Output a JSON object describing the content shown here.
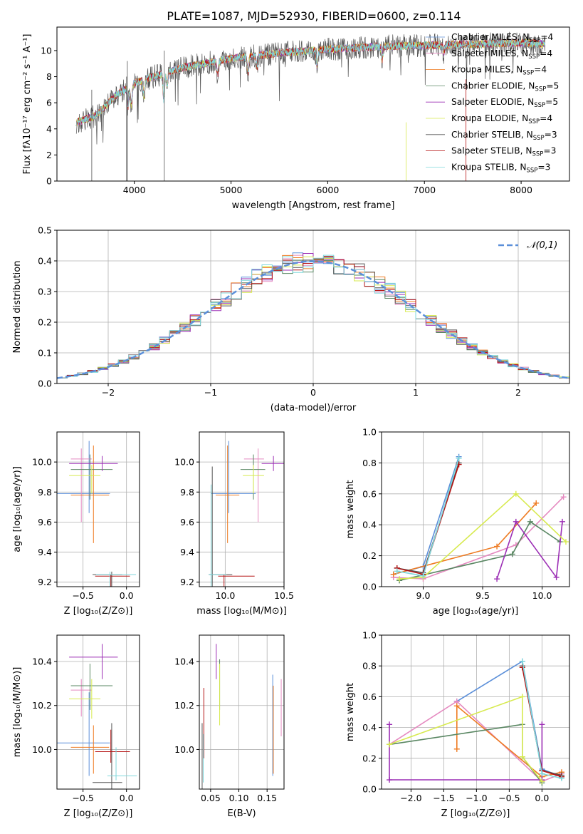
{
  "title": "PLATE=1087, MJD=52930, FIBERID=0600, z=0.114",
  "colors": {
    "Chabrier MILES": "#5b8fd9",
    "Salpeter MILES": "#e58ac0",
    "Kroupa MILES": "#ee7b22",
    "Chabrier ELODIE": "#5a8763",
    "Salpeter ELODIE": "#9c2fb5",
    "Kroupa ELODIE": "#d7ea4f",
    "Chabrier STELIB": "#555555",
    "Salpeter STELIB": "#b51414",
    "Kroupa STELIB": "#7fd8dc",
    "gauss": "#5b8fd9"
  },
  "legend_models": [
    {
      "name": "Chabrier MILES",
      "suffix": "4"
    },
    {
      "name": "Salpeter MILES",
      "suffix": "4"
    },
    {
      "name": "Kroupa MILES",
      "suffix": "4"
    },
    {
      "name": "Chabrier ELODIE",
      "suffix": "5"
    },
    {
      "name": "Salpeter ELODIE",
      "suffix": "5"
    },
    {
      "name": "Kroupa ELODIE",
      "suffix": "4"
    },
    {
      "name": "Chabrier STELIB",
      "suffix": "3"
    },
    {
      "name": "Salpeter STELIB",
      "suffix": "3"
    },
    {
      "name": "Kroupa STELIB",
      "suffix": "3"
    }
  ],
  "chart_data": [
    {
      "id": "spectrum",
      "type": "line",
      "xlabel": "wavelength [Angstrom, rest frame]",
      "ylabel": "Flux [fλ10⁻¹⁷ erg cm⁻² s⁻¹ A⁻¹]",
      "xlim": [
        3200,
        8500
      ],
      "ylim": [
        0,
        11.8
      ],
      "xticks": [
        4000,
        5000,
        6000,
        7000,
        8000
      ],
      "yticks": [
        0,
        2,
        4,
        6,
        8,
        10
      ],
      "continuum_x": [
        3400,
        3600,
        3800,
        4000,
        4200,
        4500,
        4800,
        5000,
        5500,
        6000,
        6500,
        7000,
        7500,
        8000,
        8250
      ],
      "continuum_y": [
        4.5,
        5.0,
        6.5,
        7.5,
        8.0,
        8.7,
        9.1,
        9.4,
        9.8,
        10.1,
        10.3,
        10.4,
        10.5,
        10.6,
        10.5
      ],
      "absorption_features": [
        [
          3934,
          1.5
        ],
        [
          3969,
          1.5
        ],
        [
          4101,
          1.2
        ],
        [
          4305,
          2.0
        ],
        [
          4340,
          1.0
        ],
        [
          4861,
          1.0
        ],
        [
          5175,
          1.2
        ],
        [
          5270,
          0.8
        ],
        [
          5890,
          1.2
        ],
        [
          6563,
          1.0
        ],
        [
          7200,
          0.6
        ]
      ]
    },
    {
      "id": "residual-histogram",
      "type": "bar",
      "xlabel": "(data-model)/error",
      "ylabel": "Normed distribution",
      "xlim": [
        -2.5,
        2.5
      ],
      "ylim": [
        0,
        0.5
      ],
      "xticks": [
        -2,
        -1,
        0,
        1,
        2
      ],
      "yticks": [
        0.0,
        0.1,
        0.2,
        0.3,
        0.4,
        0.5
      ],
      "bin_width": 0.1,
      "gauss_label": "𝒩(0,1)",
      "gauss_mean": 0,
      "gauss_sigma": 1
    },
    {
      "id": "age-vs-Z",
      "type": "scatter",
      "xlabel": "Z [log₁₀(Z/Z⊙)]",
      "ylabel": "age  [log₁₀(age/yr)]",
      "xlim": [
        -0.8,
        0.15
      ],
      "ylim": [
        9.17,
        10.2
      ],
      "xticks": [
        -0.5,
        0.0
      ],
      "yticks": [
        9.2,
        9.4,
        9.6,
        9.8,
        10.0
      ],
      "points": [
        {
          "model": "Chabrier MILES",
          "x": -0.43,
          "y": 9.79,
          "xe": [
            0.38,
            0.24
          ],
          "ye": [
            0.13,
            0.35
          ]
        },
        {
          "model": "Salpeter MILES",
          "x": -0.52,
          "y": 10.02,
          "xe": [
            0.12,
            0.12
          ],
          "ye": [
            0.42,
            0.07
          ]
        },
        {
          "model": "Kroupa MILES",
          "x": -0.38,
          "y": 9.78,
          "xe": [
            0.26,
            0.18
          ],
          "ye": [
            0.32,
            0.33
          ]
        },
        {
          "model": "Chabrier ELODIE",
          "x": -0.42,
          "y": 9.95,
          "xe": [
            0.22,
            0.26
          ],
          "ye": [
            0.2,
            0.1
          ]
        },
        {
          "model": "Salpeter ELODIE",
          "x": -0.28,
          "y": 9.99,
          "xe": [
            0.38,
            0.18
          ],
          "ye": [
            0.05,
            0.05
          ]
        },
        {
          "model": "Kroupa ELODIE",
          "x": -0.4,
          "y": 9.91,
          "xe": [
            0.26,
            0.1
          ],
          "ye": [
            0.12,
            0.07
          ]
        },
        {
          "model": "Chabrier STELIB",
          "x": -0.17,
          "y": 9.25,
          "xe": [
            0.22,
            0.12
          ],
          "ye": [
            0.34,
            0.02
          ]
        },
        {
          "model": "Salpeter STELIB",
          "x": -0.18,
          "y": 9.24,
          "xe": [
            0.18,
            0.22
          ],
          "ye": [
            0.36,
            0.01
          ]
        },
        {
          "model": "Kroupa STELIB",
          "x": -0.19,
          "y": 9.25,
          "xe": [
            0.16,
            0.3
          ],
          "ye": [
            0.36,
            0.02
          ]
        }
      ]
    },
    {
      "id": "age-vs-mass",
      "type": "scatter",
      "xlabel": "mass [log₁₀(M/M⊙)]",
      "ylabel": "",
      "xlim": [
        9.78,
        10.5
      ],
      "ylim": [
        9.17,
        10.2
      ],
      "xticks": [
        10.0,
        10.5
      ],
      "yticks": [
        9.2,
        9.4,
        9.6,
        9.8,
        10.0
      ],
      "points": [
        {
          "model": "Chabrier MILES",
          "x": 10.03,
          "y": 9.79,
          "xe": [
            0.15,
            0.23
          ],
          "ye": [
            0.13,
            0.35
          ]
        },
        {
          "model": "Salpeter MILES",
          "x": 10.28,
          "y": 10.02,
          "xe": [
            0.12,
            0.05
          ],
          "ye": [
            0.42,
            0.07
          ]
        },
        {
          "model": "Kroupa MILES",
          "x": 10.02,
          "y": 9.78,
          "xe": [
            0.1,
            0.1
          ],
          "ye": [
            0.32,
            0.33
          ]
        },
        {
          "model": "Chabrier ELODIE",
          "x": 10.24,
          "y": 9.95,
          "xe": [
            0.11,
            0.1
          ],
          "ye": [
            0.2,
            0.1
          ]
        },
        {
          "model": "Salpeter ELODIE",
          "x": 10.41,
          "y": 9.99,
          "xe": [
            0.1,
            0.09
          ],
          "ye": [
            0.05,
            0.05
          ]
        },
        {
          "model": "Kroupa ELODIE",
          "x": 10.24,
          "y": 9.91,
          "xe": [
            0.09,
            0.09
          ],
          "ye": [
            0.12,
            0.07
          ]
        },
        {
          "model": "Chabrier STELIB",
          "x": 9.89,
          "y": 9.25,
          "xe": [
            0.03,
            0.17
          ],
          "ye": [
            0.34,
            0.72
          ]
        },
        {
          "model": "Salpeter STELIB",
          "x": 9.99,
          "y": 9.24,
          "xe": [
            0.05,
            0.26
          ],
          "ye": [
            0.36,
            0.01
          ]
        },
        {
          "model": "Kroupa STELIB",
          "x": 9.88,
          "y": 9.25,
          "xe": [
            0.02,
            0.13
          ],
          "ye": [
            0.36,
            0.6
          ]
        }
      ]
    },
    {
      "id": "massweight-vs-age",
      "type": "line",
      "xlabel": "age  [log₁₀(age/yr)]",
      "ylabel": "mass weight",
      "xlim": [
        8.65,
        10.23
      ],
      "ylim": [
        0,
        1
      ],
      "xticks": [
        9.0,
        9.5,
        10.0
      ],
      "yticks": [
        0.0,
        0.2,
        0.4,
        0.6,
        0.8,
        1.0
      ],
      "series": [
        {
          "model": "Chabrier MILES",
          "x": [
            8.75,
            9.0,
            9.3
          ],
          "y": [
            0.08,
            0.13,
            0.84
          ]
        },
        {
          "model": "Salpeter MILES",
          "x": [
            8.75,
            9.0,
            9.78,
            10.18
          ],
          "y": [
            0.06,
            0.05,
            0.27,
            0.58
          ]
        },
        {
          "model": "Kroupa MILES",
          "x": [
            8.75,
            9.62,
            9.95
          ],
          "y": [
            0.08,
            0.26,
            0.54
          ]
        },
        {
          "model": "Chabrier ELODIE",
          "x": [
            8.8,
            9.75,
            9.9,
            10.15
          ],
          "y": [
            0.04,
            0.21,
            0.42,
            0.29
          ]
        },
        {
          "model": "Salpeter ELODIE",
          "x": [
            9.62,
            9.78,
            10.12,
            10.17
          ],
          "y": [
            0.05,
            0.42,
            0.06,
            0.42
          ]
        },
        {
          "model": "Kroupa ELODIE",
          "x": [
            8.8,
            9.0,
            9.78,
            10.2
          ],
          "y": [
            0.05,
            0.06,
            0.6,
            0.29
          ]
        },
        {
          "model": "Chabrier STELIB",
          "x": [
            8.78,
            9.0,
            9.3
          ],
          "y": [
            0.12,
            0.09,
            0.8
          ]
        },
        {
          "model": "Salpeter STELIB",
          "x": [
            8.78,
            9.0,
            9.3
          ],
          "y": [
            0.12,
            0.08,
            0.79
          ]
        },
        {
          "model": "Kroupa STELIB",
          "x": [
            8.78,
            9.0,
            9.3
          ],
          "y": [
            0.1,
            0.07,
            0.83
          ]
        }
      ]
    },
    {
      "id": "mass-vs-Z",
      "type": "scatter",
      "xlabel": "Z [log₁₀(Z/Z⊙)]",
      "ylabel": "mass [log₁₀(M/M⊙)]",
      "xlim": [
        -0.8,
        0.15
      ],
      "ylim": [
        9.82,
        10.52
      ],
      "xticks": [
        -0.5,
        0.0
      ],
      "yticks": [
        10.0,
        10.2,
        10.4
      ],
      "points": [
        {
          "model": "Chabrier MILES",
          "x": -0.43,
          "y": 10.03,
          "xe": [
            0.38,
            0.24
          ],
          "ye": [
            0.15,
            0.23
          ]
        },
        {
          "model": "Salpeter MILES",
          "x": -0.52,
          "y": 10.27,
          "xe": [
            0.12,
            0.12
          ],
          "ye": [
            0.12,
            0.05
          ]
        },
        {
          "model": "Kroupa MILES",
          "x": -0.38,
          "y": 10.01,
          "xe": [
            0.26,
            0.18
          ],
          "ye": [
            0.12,
            0.1
          ]
        },
        {
          "model": "Chabrier ELODIE",
          "x": -0.42,
          "y": 10.29,
          "xe": [
            0.22,
            0.26
          ],
          "ye": [
            0.11,
            0.1
          ]
        },
        {
          "model": "Salpeter ELODIE",
          "x": -0.28,
          "y": 10.42,
          "xe": [
            0.38,
            0.18
          ],
          "ye": [
            0.1,
            0.06
          ]
        },
        {
          "model": "Kroupa ELODIE",
          "x": -0.4,
          "y": 10.23,
          "xe": [
            0.26,
            0.1
          ],
          "ye": [
            0.09,
            0.09
          ]
        },
        {
          "model": "Chabrier STELIB",
          "x": -0.17,
          "y": 9.85,
          "xe": [
            0.22,
            0.12
          ],
          "ye": [
            0.03,
            0.27
          ]
        },
        {
          "model": "Salpeter STELIB",
          "x": -0.18,
          "y": 9.99,
          "xe": [
            0.18,
            0.22
          ],
          "ye": [
            0.05,
            0.1
          ]
        },
        {
          "model": "Kroupa STELIB",
          "x": -0.12,
          "y": 9.88,
          "xe": [
            0.1,
            0.24
          ],
          "ye": [
            0.02,
            0.13
          ]
        }
      ]
    },
    {
      "id": "mass-vs-EBV",
      "type": "scatter",
      "xlabel": "E(B-V)",
      "ylabel": "",
      "xlim": [
        0.03,
        0.18
      ],
      "ylim": [
        9.82,
        10.52
      ],
      "xticks": [
        0.05,
        0.1,
        0.15
      ],
      "yticks": [
        10.0,
        10.2,
        10.4
      ],
      "points": [
        {
          "model": "Chabrier MILES",
          "x": 0.16,
          "y": 10.03,
          "xe": [
            0,
            0
          ],
          "ye": [
            0.15,
            0.31
          ]
        },
        {
          "model": "Salpeter MILES",
          "x": 0.175,
          "y": 10.17,
          "xe": [
            0,
            0
          ],
          "ye": [
            0.11,
            0.15
          ]
        },
        {
          "model": "Kroupa MILES",
          "x": 0.161,
          "y": 10.01,
          "xe": [
            0,
            0
          ],
          "ye": [
            0.12,
            0.28
          ]
        },
        {
          "model": "Chabrier ELODIE",
          "x": 0.066,
          "y": 10.29,
          "xe": [
            0,
            0
          ],
          "ye": [
            0.11,
            0.12
          ]
        },
        {
          "model": "Salpeter ELODIE",
          "x": 0.06,
          "y": 10.42,
          "xe": [
            0,
            0
          ],
          "ye": [
            0.1,
            0.06
          ]
        },
        {
          "model": "Kroupa ELODIE",
          "x": 0.066,
          "y": 10.25,
          "xe": [
            0,
            0
          ],
          "ye": [
            0.14,
            0.14
          ]
        },
        {
          "model": "Chabrier STELIB",
          "x": 0.035,
          "y": 9.96,
          "xe": [
            0,
            0
          ],
          "ye": [
            0.14,
            0.16
          ]
        },
        {
          "model": "Salpeter STELIB",
          "x": 0.038,
          "y": 10.09,
          "xe": [
            0,
            0
          ],
          "ye": [
            0.13,
            0.19
          ]
        },
        {
          "model": "Kroupa STELIB",
          "x": 0.037,
          "y": 9.95,
          "xe": [
            0,
            0
          ],
          "ye": [
            0.1,
            0.12
          ]
        }
      ]
    },
    {
      "id": "massweight-vs-Z",
      "type": "line",
      "xlabel": "Z [log₁₀(Z/Z⊙)]",
      "ylabel": "mass weight",
      "xlim": [
        -2.45,
        0.42
      ],
      "ylim": [
        0,
        1
      ],
      "xticks": [
        -2.0,
        -1.5,
        -1.0,
        -0.5,
        0.0
      ],
      "yticks": [
        0.0,
        0.2,
        0.4,
        0.6,
        0.8,
        1.0
      ],
      "series": [
        {
          "model": "Chabrier MILES",
          "x": [
            -1.3,
            -0.3,
            0.0,
            0.3
          ],
          "y": [
            0.57,
            0.83,
            0.13,
            0.08
          ]
        },
        {
          "model": "Salpeter MILES",
          "x": [
            -2.33,
            -1.3,
            0.0,
            0.3
          ],
          "y": [
            0.29,
            0.57,
            0.05,
            0.1
          ]
        },
        {
          "model": "Kroupa MILES",
          "x": [
            -1.3,
            -1.3,
            0.0,
            0.3
          ],
          "y": [
            0.26,
            0.54,
            0.08,
            0.11
          ]
        },
        {
          "model": "Chabrier ELODIE",
          "x": [
            -2.33,
            -0.3,
            -0.3,
            0.0
          ],
          "y": [
            0.29,
            0.42,
            0.21,
            0.04
          ]
        },
        {
          "model": "Salpeter ELODIE",
          "x": [
            -2.33,
            -2.33,
            0.0,
            0.0
          ],
          "y": [
            0.42,
            0.06,
            0.06,
            0.42
          ]
        },
        {
          "model": "Kroupa ELODIE",
          "x": [
            -2.33,
            -0.3,
            -0.3,
            0.0
          ],
          "y": [
            0.29,
            0.6,
            0.21,
            0.05
          ]
        },
        {
          "model": "Chabrier STELIB",
          "x": [
            -0.3,
            0.0,
            0.3
          ],
          "y": [
            0.8,
            0.12,
            0.09
          ]
        },
        {
          "model": "Salpeter STELIB",
          "x": [
            -0.3,
            0.0,
            0.3
          ],
          "y": [
            0.79,
            0.12,
            0.08
          ]
        },
        {
          "model": "Kroupa STELIB",
          "x": [
            -0.3,
            0.0,
            0.3
          ],
          "y": [
            0.83,
            0.1,
            0.07
          ]
        }
      ]
    }
  ]
}
